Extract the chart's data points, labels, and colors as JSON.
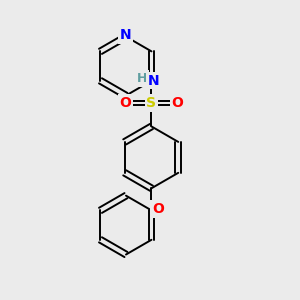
{
  "background_color": "#ebebeb",
  "bond_color": "#000000",
  "atom_colors": {
    "N": "#0000ff",
    "O": "#ff0000",
    "S": "#cccc00",
    "H": "#5f9ea0",
    "C": "#000000"
  },
  "figsize": [
    3.0,
    3.0
  ],
  "dpi": 100,
  "xlim": [
    0,
    10
  ],
  "ylim": [
    0,
    10
  ]
}
